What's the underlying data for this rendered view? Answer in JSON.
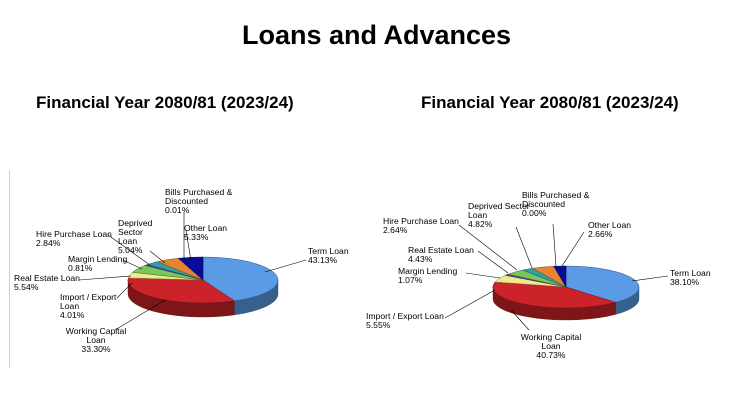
{
  "page": {
    "title": "Loans and Advances"
  },
  "chart_data": [
    {
      "type": "pie",
      "title": "Financial Year 2080/81 (2023/24)",
      "slices": [
        {
          "label": "Term Loan",
          "value": 43.13,
          "display": "43.13%",
          "color": "#5b9be6"
        },
        {
          "label": "Working Capital Loan",
          "value": 33.3,
          "display": "33.30%",
          "color": "#cc2229"
        },
        {
          "label": "Import / Export Loan",
          "value": 4.01,
          "display": "4.01%",
          "color": "#f2e98e"
        },
        {
          "label": "Real Estate Loan",
          "value": 5.54,
          "display": "5.54%",
          "color": "#77c75a"
        },
        {
          "label": "Margin Lending",
          "value": 0.81,
          "display": "0.81%",
          "color": "#6e3d9a"
        },
        {
          "label": "Hire Purchase Loan",
          "value": 2.84,
          "display": "2.84%",
          "color": "#2f9fa6"
        },
        {
          "label": "Deprived Sector Loan",
          "value": 5.04,
          "display": "5.04%",
          "color": "#e8832f"
        },
        {
          "label": "Bills Purchased & Discounted",
          "value": 0.01,
          "display": "0.01%",
          "color": "#8a5a45"
        },
        {
          "label": "Other Loan",
          "value": 5.33,
          "display": "5.33%",
          "color": "#0b0b9a"
        }
      ]
    },
    {
      "type": "pie",
      "title": "Financial Year 2080/81 (2023/24)",
      "slices": [
        {
          "label": "Term Loan",
          "value": 38.1,
          "display": "38.10%",
          "color": "#5b9be6"
        },
        {
          "label": "Working Capital Loan",
          "value": 40.73,
          "display": "40.73%",
          "color": "#cc2229"
        },
        {
          "label": "Import / Export Loan",
          "value": 5.55,
          "display": "5.55%",
          "color": "#f2e98e"
        },
        {
          "label": "Margin Lending",
          "value": 1.07,
          "display": "1.07%",
          "color": "#6e3d9a"
        },
        {
          "label": "Real Estate Loan",
          "value": 4.43,
          "display": "4.43%",
          "color": "#77c75a"
        },
        {
          "label": "Hire Purchase Loan",
          "value": 2.64,
          "display": "2.64%",
          "color": "#2f9fa6"
        },
        {
          "label": "Deprived Sector Loan",
          "value": 4.82,
          "display": "4.82%",
          "color": "#e8832f"
        },
        {
          "label": "Bills Purchased & Discounted",
          "value": 0.0,
          "display": "0.00%",
          "color": "#8a5a45"
        },
        {
          "label": "Other Loan",
          "value": 2.66,
          "display": "2.66%",
          "color": "#0b0b9a"
        }
      ]
    }
  ]
}
